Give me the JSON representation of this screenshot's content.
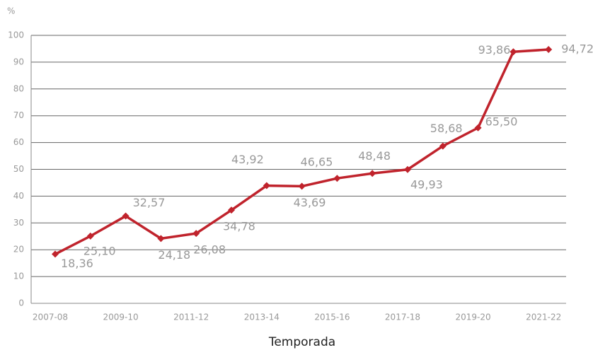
{
  "chart_data": {
    "type": "line",
    "y_unit": "%",
    "x_label": "Temporada",
    "categories": [
      "2007-08",
      null,
      "2009-10",
      null,
      "2011-12",
      null,
      "2013-14",
      null,
      "2015-16",
      null,
      "2017-18",
      null,
      "2019-20",
      null,
      "2021-22"
    ],
    "series": [
      {
        "color": "#c0232c",
        "values": [
          18.36,
          25.1,
          32.57,
          24.18,
          26.08,
          34.78,
          43.92,
          43.69,
          46.65,
          48.48,
          49.93,
          58.68,
          65.5,
          93.86,
          94.72
        ],
        "value_labels": [
          "18,36",
          "25,10",
          "32,57",
          "24,18",
          "26,08",
          "34,78",
          "43,92",
          "43,69",
          "46,65",
          "48,48",
          "49,93",
          "58,68",
          "65,50",
          "93,86",
          "94,72"
        ]
      }
    ],
    "ylim": [
      0,
      100
    ],
    "yticks": [
      0,
      10,
      20,
      30,
      40,
      50,
      60,
      70,
      80,
      90,
      100
    ],
    "grid": true
  }
}
